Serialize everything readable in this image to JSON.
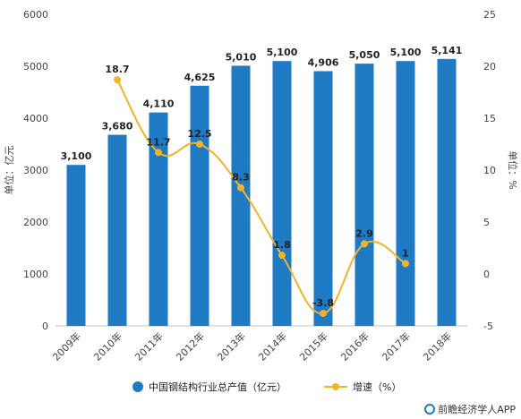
{
  "chart_data": {
    "type": "bar",
    "categories": [
      "2009年",
      "2010年",
      "2011年",
      "2012年",
      "2013年",
      "2014年",
      "2015年",
      "2016年",
      "2017年",
      "2018年"
    ],
    "series": [
      {
        "name": "中国钢结构行业总产值（亿元）",
        "type": "bar",
        "axis": "left",
        "color": "#1f7ac4",
        "values": [
          3100,
          3680,
          4110,
          4625,
          5010,
          5100,
          4906,
          5050,
          5100,
          5141
        ],
        "labels": [
          "3,100",
          "3,680",
          "4,110",
          "4,625",
          "5,010",
          "5,100",
          "4,906",
          "5,050",
          "5,100",
          "5,141"
        ]
      },
      {
        "name": "增速（%）",
        "type": "line",
        "axis": "right",
        "color": "#f2b22a",
        "values": [
          null,
          18.7,
          11.7,
          12.5,
          8.3,
          1.8,
          -3.8,
          2.9,
          1,
          null
        ],
        "labels": [
          "",
          "18.7",
          "11.7",
          "12.5",
          "8.3",
          "1.8",
          "-3.8",
          "2.9",
          "1",
          ""
        ]
      }
    ],
    "ylabel": "单位：亿元",
    "y2label": "单位：%",
    "ylim": [
      0,
      6000
    ],
    "y2lim": [
      -5,
      25
    ],
    "yticks": [
      "0",
      "1000",
      "2000",
      "3000",
      "4000",
      "5000",
      "6000"
    ],
    "y2ticks": [
      "-5",
      "0",
      "5",
      "10",
      "15",
      "20",
      "25"
    ],
    "grid": false,
    "legend_position": "bottom"
  },
  "watermark": "前瞻经济学人APP"
}
